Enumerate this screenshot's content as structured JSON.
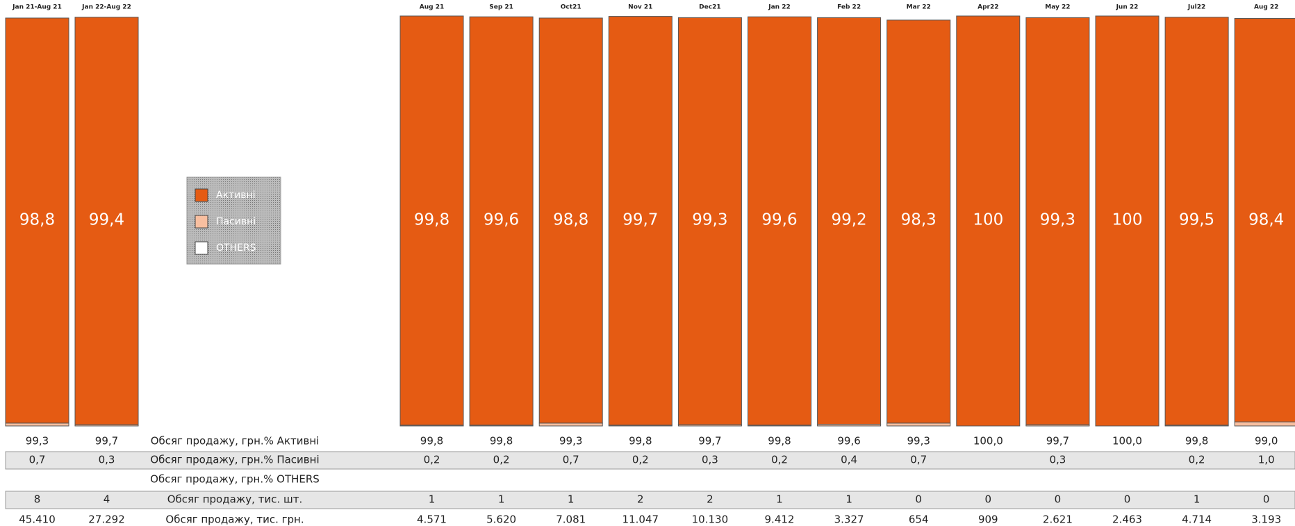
{
  "chart_data": {
    "type": "bar",
    "stacked": true,
    "categories": [
      "Jan 21-Aug 21",
      "Jan 22-Aug 22",
      "Aug 21",
      "Sep 21",
      "Oct21",
      "Nov 21",
      "Dec21",
      "Jan 22",
      "Feb 22",
      "Mar 22",
      "Apr22",
      "May 22",
      "Jun 22",
      "Jul22",
      "Aug 22"
    ],
    "ylim": [
      0,
      100
    ],
    "legend": "middle",
    "series": [
      {
        "name": "Активні",
        "color": "#e55b13",
        "values": [
          98.8,
          99.4,
          99.8,
          99.6,
          98.8,
          99.7,
          99.3,
          99.6,
          99.2,
          98.3,
          100,
          99.3,
          100,
          99.5,
          98.4
        ],
        "value_labels": [
          "98,8",
          "99,4",
          "99,8",
          "99,6",
          "98,8",
          "99,7",
          "99,3",
          "99,6",
          "99,2",
          "98,3",
          "100",
          "99,3",
          "100",
          "99,5",
          "98,4"
        ]
      },
      {
        "name": "Пасивні",
        "color": "#f8bfa0",
        "values": [
          0.7,
          0.3,
          0.2,
          0.2,
          0.7,
          0.2,
          0.3,
          0.2,
          0.4,
          0.7,
          null,
          0.3,
          null,
          0.2,
          1.0
        ]
      },
      {
        "name": "OTHERS",
        "color": "#ffffff",
        "values": [
          null,
          null,
          null,
          null,
          null,
          null,
          null,
          null,
          null,
          null,
          null,
          null,
          null,
          null,
          null
        ]
      }
    ],
    "table": {
      "rows": [
        {
          "label": "Обсяг продажу, грн.% Активні",
          "cells": [
            "99,3",
            "99,7",
            "99,8",
            "99,8",
            "99,3",
            "99,8",
            "99,7",
            "99,8",
            "99,6",
            "99,3",
            "100,0",
            "99,7",
            "100,0",
            "99,8",
            "99,0"
          ]
        },
        {
          "label": "Обсяг продажу, грн.% Пасивні",
          "cells": [
            "0,7",
            "0,3",
            "0,2",
            "0,2",
            "0,7",
            "0,2",
            "0,3",
            "0,2",
            "0,4",
            "0,7",
            null,
            "0,3",
            null,
            "0,2",
            "1,0"
          ]
        },
        {
          "label": "Обсяг продажу, грн.% OTHERS"
        },
        {
          "label": "Обсяг продажу, тис. шт.",
          "cells": [
            "8",
            "4",
            "1",
            "1",
            "1",
            "2",
            "2",
            "1",
            "1",
            "0",
            "0",
            "0",
            "0",
            "1",
            "0"
          ]
        },
        {
          "label": "Обсяг продажу, тис. грн.",
          "cells": [
            "45.410",
            "27.292",
            "4.571",
            "5.620",
            "7.081",
            "11.047",
            "10.130",
            "9.412",
            "3.327",
            "654",
            "909",
            "2.621",
            "2.463",
            "4.714",
            "3.193"
          ]
        }
      ]
    }
  }
}
